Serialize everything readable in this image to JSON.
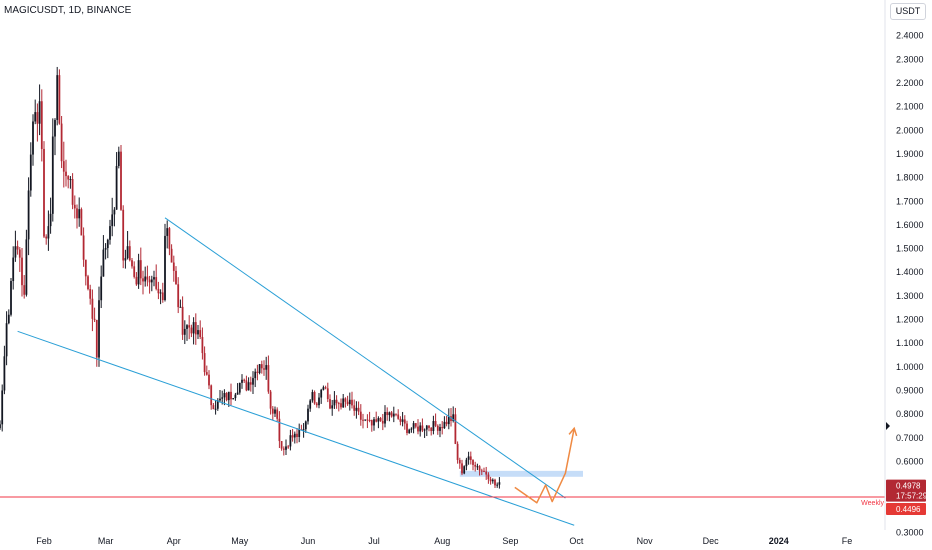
{
  "header": {
    "symbol_line": "MAGICUSDT, 1D, BINANCE",
    "currency": "USDT"
  },
  "colors": {
    "up": "#131722",
    "down": "#b22833",
    "trendline": "#2a9fd6",
    "support": "#f23645",
    "projection": "#ef8a43",
    "zone": "#b3d1f5"
  },
  "chart_data": {
    "type": "candlestick",
    "y_axis_ticks": [
      "2.4000",
      "2.3000",
      "2.2000",
      "2.1000",
      "2.0000",
      "1.9000",
      "1.8000",
      "1.7000",
      "1.6000",
      "1.5000",
      "1.4000",
      "1.3000",
      "1.2000",
      "1.1000",
      "1.0000",
      "0.9000",
      "0.8000",
      "0.7000",
      "0.6000",
      "0.3000"
    ],
    "x_axis_ticks": [
      {
        "label": "Feb",
        "bold": false
      },
      {
        "label": "Mar",
        "bold": false
      },
      {
        "label": "Apr",
        "bold": false
      },
      {
        "label": "May",
        "bold": false
      },
      {
        "label": "Jun",
        "bold": false
      },
      {
        "label": "Jul",
        "bold": false
      },
      {
        "label": "Aug",
        "bold": false
      },
      {
        "label": "Sep",
        "bold": false
      },
      {
        "label": "Oct",
        "bold": false
      },
      {
        "label": "Nov",
        "bold": false
      },
      {
        "label": "Dec",
        "bold": false
      },
      {
        "label": "2024",
        "bold": true
      },
      {
        "label": "Fe",
        "bold": false
      }
    ],
    "price_labels": {
      "last_price": "0.4978",
      "countdown": "17:57:29",
      "support_price": "0.4496",
      "support_name": "Weekly"
    },
    "close_path": [
      [
        "2023-01-05",
        0.72
      ],
      [
        "2023-01-08",
        0.7
      ],
      [
        "2023-01-10",
        0.78
      ],
      [
        "2023-01-12",
        0.74
      ],
      [
        "2023-01-14",
        1.05
      ],
      [
        "2023-01-15",
        1.2
      ],
      [
        "2023-01-16",
        1.2
      ],
      [
        "2023-01-18",
        1.5
      ],
      [
        "2023-01-20",
        1.52
      ],
      [
        "2023-01-23",
        1.3
      ],
      [
        "2023-01-25",
        1.78
      ],
      [
        "2023-01-26",
        1.95
      ],
      [
        "2023-01-28",
        2.02
      ],
      [
        "2023-01-30",
        2.13
      ],
      [
        "2023-01-31",
        1.87
      ],
      [
        "2023-02-01",
        1.58
      ],
      [
        "2023-02-02",
        1.55
      ],
      [
        "2023-02-04",
        1.63
      ],
      [
        "2023-02-05",
        2.0
      ],
      [
        "2023-02-07",
        2.17
      ],
      [
        "2023-02-09",
        1.9
      ],
      [
        "2023-02-10",
        1.82
      ],
      [
        "2023-02-12",
        1.83
      ],
      [
        "2023-02-14",
        1.7
      ],
      [
        "2023-02-16",
        1.67
      ],
      [
        "2023-02-18",
        1.58
      ],
      [
        "2023-02-19",
        1.42
      ],
      [
        "2023-02-21",
        1.35
      ],
      [
        "2023-02-23",
        1.21
      ],
      [
        "2023-02-24",
        1.18
      ],
      [
        "2023-02-25",
        1.03
      ],
      [
        "2023-02-26",
        1.31
      ],
      [
        "2023-02-28",
        1.5
      ],
      [
        "2023-03-02",
        1.58
      ],
      [
        "2023-03-05",
        1.65
      ],
      [
        "2023-03-06",
        1.8
      ],
      [
        "2023-03-07",
        1.93
      ],
      [
        "2023-03-08",
        1.67
      ],
      [
        "2023-03-09",
        1.45
      ],
      [
        "2023-03-11",
        1.48
      ],
      [
        "2023-03-13",
        1.43
      ],
      [
        "2023-03-15",
        1.37
      ],
      [
        "2023-03-16",
        1.43
      ],
      [
        "2023-03-18",
        1.38
      ],
      [
        "2023-03-21",
        1.32
      ],
      [
        "2023-03-23",
        1.35
      ],
      [
        "2023-03-24",
        1.31
      ],
      [
        "2023-03-25",
        1.3
      ],
      [
        "2023-03-27",
        1.32
      ],
      [
        "2023-03-28",
        1.57
      ],
      [
        "2023-03-29",
        1.6
      ],
      [
        "2023-03-31",
        1.45
      ],
      [
        "2023-04-03",
        1.27
      ],
      [
        "2023-04-05",
        1.17
      ],
      [
        "2023-04-09",
        1.17
      ],
      [
        "2023-04-11",
        1.14
      ],
      [
        "2023-04-13",
        1.12
      ],
      [
        "2023-04-15",
        1.0
      ],
      [
        "2023-04-18",
        0.85
      ],
      [
        "2023-04-20",
        0.84
      ],
      [
        "2023-04-24",
        0.87
      ],
      [
        "2023-04-27",
        0.88
      ],
      [
        "2023-05-01",
        0.93
      ],
      [
        "2023-05-04",
        0.92
      ],
      [
        "2023-05-08",
        0.98
      ],
      [
        "2023-05-10",
        1.02
      ],
      [
        "2023-05-13",
        0.99
      ],
      [
        "2023-05-15",
        0.84
      ],
      [
        "2023-05-18",
        0.8
      ],
      [
        "2023-05-19",
        0.69
      ],
      [
        "2023-05-21",
        0.65
      ],
      [
        "2023-05-24",
        0.7
      ],
      [
        "2023-05-27",
        0.71
      ],
      [
        "2023-05-30",
        0.73
      ],
      [
        "2023-06-02",
        0.88
      ],
      [
        "2023-06-05",
        0.86
      ],
      [
        "2023-06-08",
        0.94
      ],
      [
        "2023-06-11",
        0.83
      ],
      [
        "2023-06-15",
        0.85
      ],
      [
        "2023-06-20",
        0.84
      ],
      [
        "2023-06-25",
        0.78
      ],
      [
        "2023-06-30",
        0.75
      ],
      [
        "2023-07-05",
        0.78
      ],
      [
        "2023-07-08",
        0.8
      ],
      [
        "2023-07-12",
        0.78
      ],
      [
        "2023-07-16",
        0.74
      ],
      [
        "2023-07-20",
        0.74
      ],
      [
        "2023-07-25",
        0.75
      ],
      [
        "2023-07-28",
        0.75
      ],
      [
        "2023-07-31",
        0.75
      ],
      [
        "2023-08-02",
        0.76
      ],
      [
        "2023-08-04",
        0.78
      ],
      [
        "2023-08-06",
        0.78
      ],
      [
        "2023-08-07",
        0.67
      ],
      [
        "2023-08-08",
        0.61
      ],
      [
        "2023-08-09",
        0.58
      ],
      [
        "2023-08-10",
        0.56
      ],
      [
        "2023-08-12",
        0.61
      ],
      [
        "2023-08-15",
        0.6
      ],
      [
        "2023-08-18",
        0.57
      ],
      [
        "2023-08-21",
        0.55
      ],
      [
        "2023-08-23",
        0.53
      ],
      [
        "2023-08-25",
        0.5
      ],
      [
        "2023-08-27",
        0.5
      ]
    ],
    "annotations": {
      "upper_trendline": [
        [
          "2023-03-28",
          1.63
        ],
        [
          "2023-09-26",
          0.445
        ]
      ],
      "lower_trendline": [
        [
          "2023-01-20",
          1.15
        ],
        [
          "2023-09-30",
          0.33
        ]
      ],
      "horizontal_support": 0.4496,
      "demand_zone": {
        "x0": "2023-08-09",
        "x1": "2023-10-04",
        "y0": 0.535,
        "y1": 0.56
      },
      "projection_path": [
        [
          "2023-09-03",
          0.49
        ],
        [
          "2023-09-13",
          0.425
        ],
        [
          "2023-09-17",
          0.5
        ],
        [
          "2023-09-20",
          0.43
        ],
        [
          "2023-09-26",
          0.55
        ],
        [
          "2023-09-30",
          0.74
        ]
      ]
    }
  }
}
